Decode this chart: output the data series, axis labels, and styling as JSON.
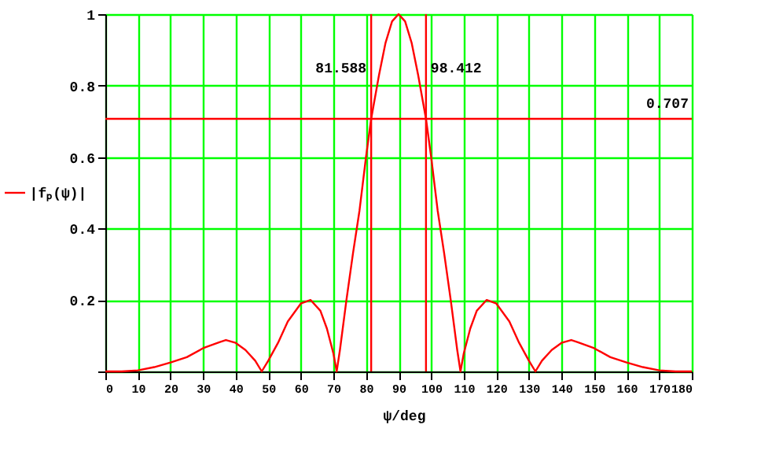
{
  "chart_data": {
    "type": "line",
    "xlabel": "ψ/deg",
    "legend": "left",
    "grid": true,
    "marker": "none",
    "line_style": "solid",
    "xlim": [
      0,
      180
    ],
    "xticks": [
      0,
      10,
      20,
      30,
      40,
      50,
      60,
      70,
      80,
      90,
      100,
      110,
      120,
      130,
      140,
      150,
      160,
      170,
      180
    ],
    "ylim": [
      0,
      1
    ],
    "yticks": [
      {
        "value": 0,
        "label": null
      },
      0.2,
      0.4,
      0.6,
      0.8,
      1
    ],
    "x": [
      0,
      5,
      10,
      15,
      20,
      25,
      30,
      35,
      37,
      40,
      43,
      46,
      48,
      50,
      53,
      56,
      60,
      63,
      66,
      68,
      70,
      71,
      72,
      74,
      76,
      78,
      80,
      81.588,
      84,
      86,
      88,
      90,
      92,
      94,
      96,
      98.412,
      100,
      102,
      104,
      106,
      108,
      109,
      110,
      112,
      114,
      117,
      120,
      124,
      127,
      130,
      132,
      134,
      137,
      140,
      143,
      145,
      150,
      155,
      160,
      165,
      170,
      175,
      180
    ],
    "series": [
      {
        "name": "|fₚ(ψ)|",
        "color": "#ff0000",
        "values": [
          0,
          0,
          0.003,
          0.012,
          0.025,
          0.04,
          0.065,
          0.082,
          0.088,
          0.08,
          0.06,
          0.03,
          0,
          0.03,
          0.08,
          0.14,
          0.19,
          0.2,
          0.17,
          0.12,
          0.05,
          0,
          0.06,
          0.2,
          0.33,
          0.45,
          0.6,
          0.707,
          0.83,
          0.92,
          0.98,
          1,
          0.98,
          0.92,
          0.83,
          0.707,
          0.6,
          0.45,
          0.33,
          0.2,
          0.06,
          0,
          0.05,
          0.12,
          0.17,
          0.2,
          0.19,
          0.14,
          0.08,
          0.03,
          0,
          0.03,
          0.06,
          0.08,
          0.088,
          0.082,
          0.065,
          0.04,
          0.025,
          0.012,
          0.003,
          0,
          0
        ]
      }
    ],
    "ref_lines": [
      {
        "axis": "y",
        "value": 0.707,
        "label": "0.707",
        "color": "#ff0000"
      },
      {
        "axis": "x",
        "value": 81.588,
        "label": "81.588",
        "color": "#ff0000"
      },
      {
        "axis": "x",
        "value": 98.412,
        "label": "98.412",
        "color": "#ff0000"
      }
    ]
  }
}
